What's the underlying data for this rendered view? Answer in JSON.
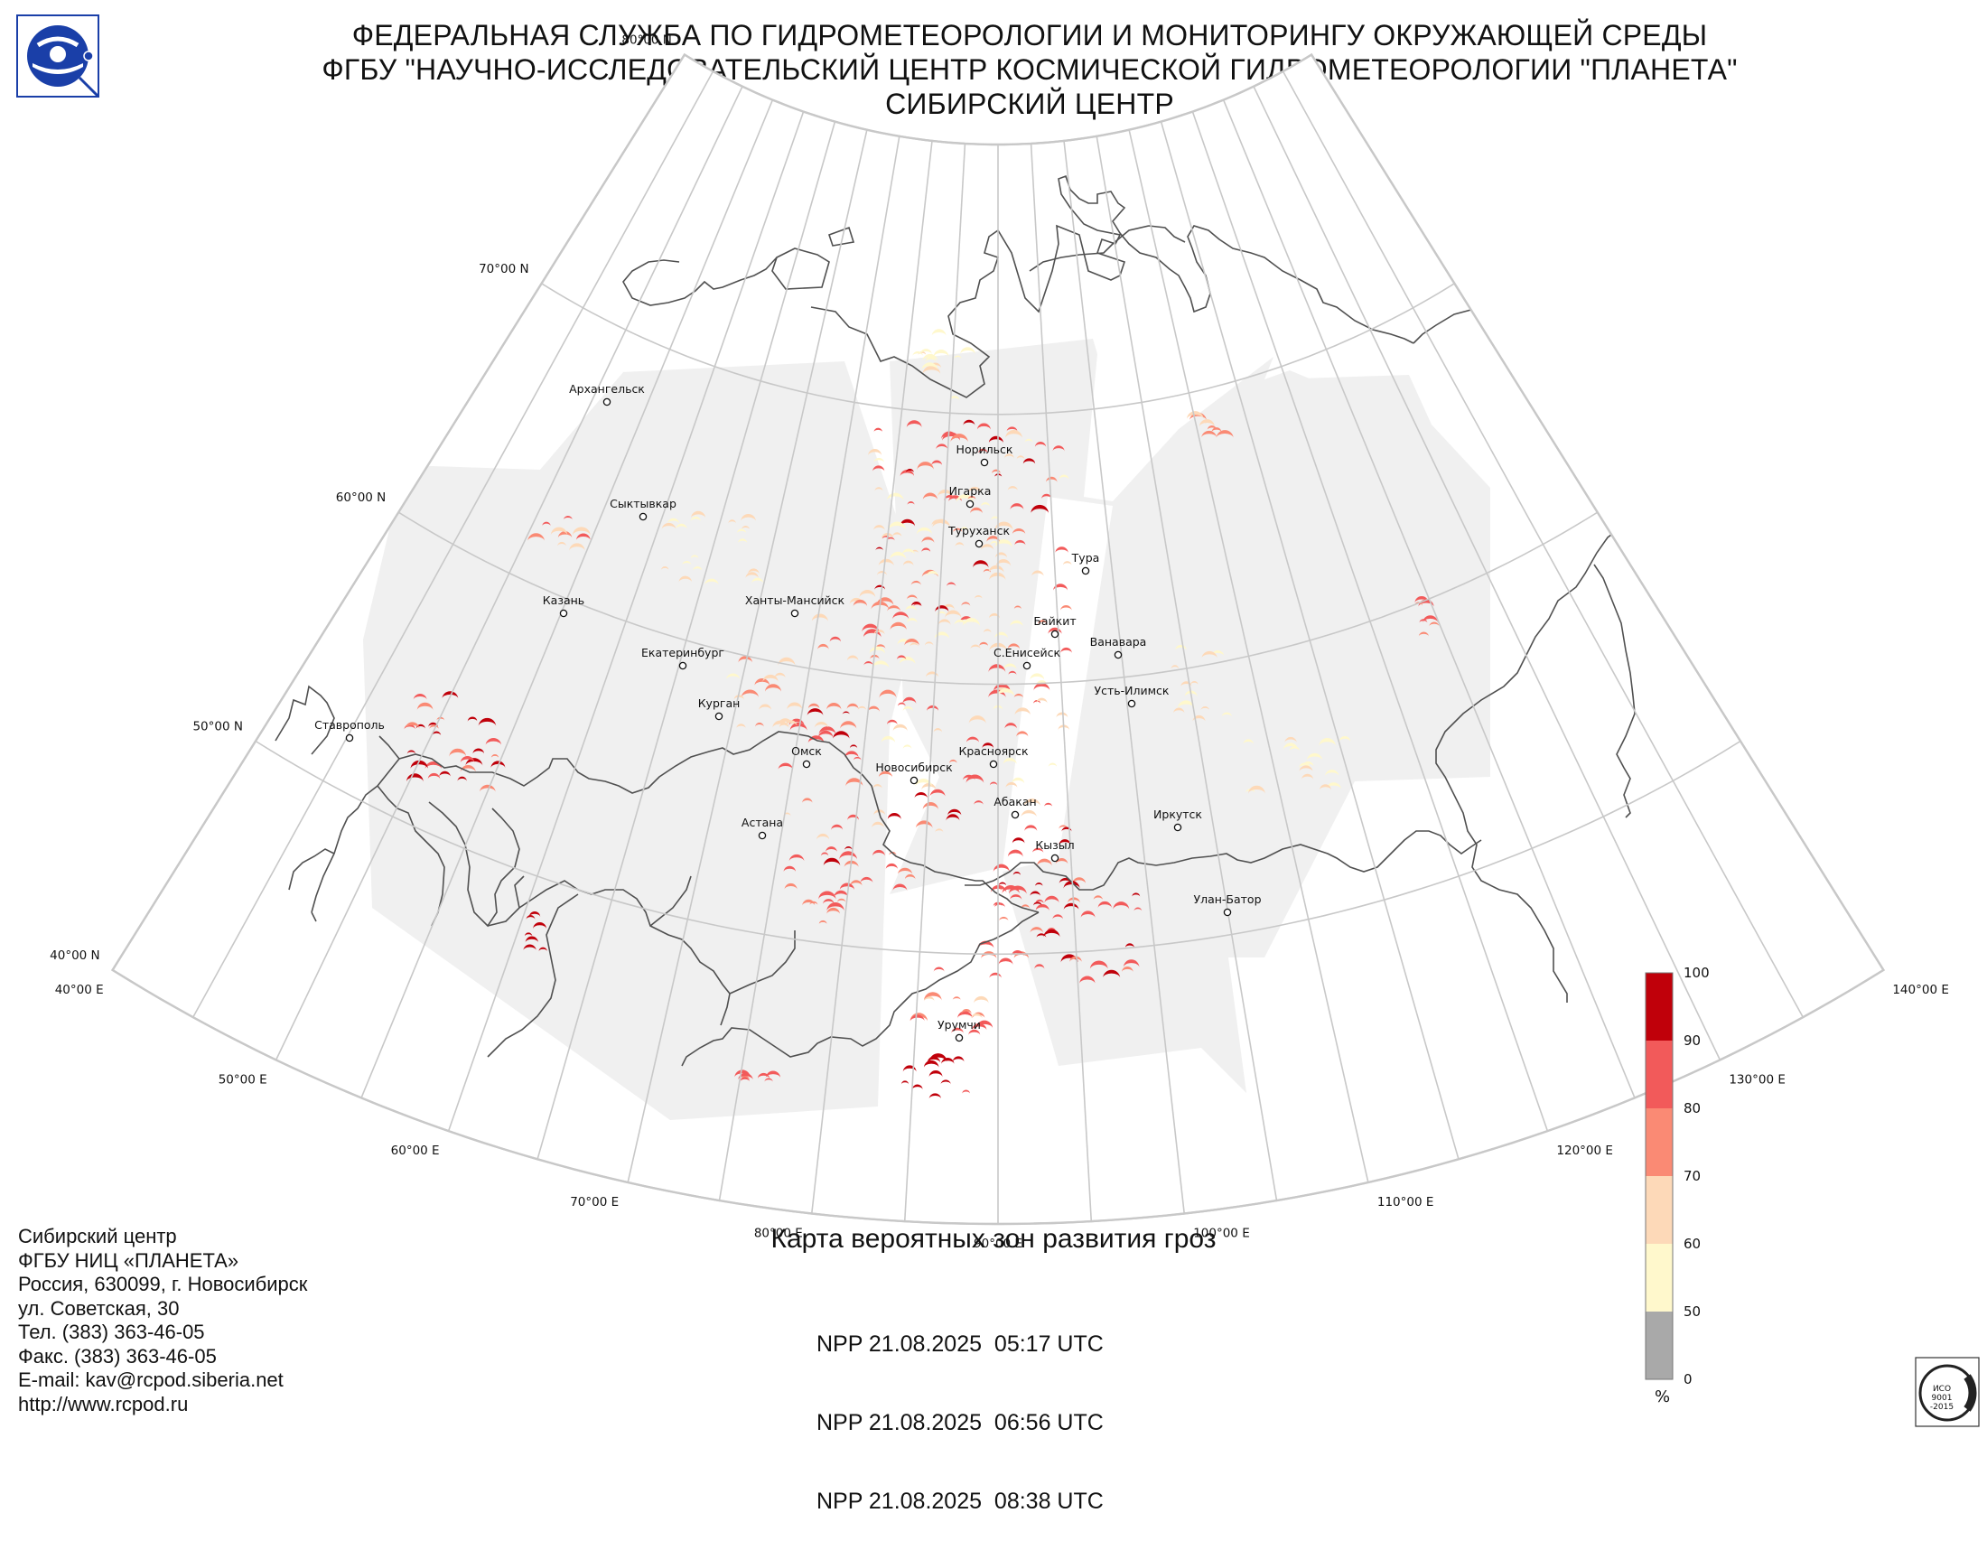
{
  "header": {
    "lines": [
      "ФЕДЕРАЛЬНАЯ СЛУЖБА ПО ГИДРОМЕТЕОРОЛОГИИ И МОНИТОРИНГУ ОКРУЖАЮЩЕЙ СРЕДЫ",
      "ФГБУ \"НАУЧНО-ИССЛЕДОВАТЕЛЬСКИЙ ЦЕНТР КОСМИЧЕСКОЙ ГИДРОМЕТЕОРОЛОГИИ \"ПЛАНЕТА\"",
      "СИБИРСКИЙ ЦЕНТР"
    ]
  },
  "logo": {
    "icon": "roshydromet-logo-icon",
    "color": "#1a3fa8"
  },
  "map": {
    "latitude_labels": [
      "80°00 N",
      "70°00 N",
      "60°00 N",
      "50°00 N",
      "40°00 N"
    ],
    "longitude_labels": [
      "40°00 E",
      "50°00 E",
      "60°00 E",
      "70°00 E",
      "80°00 E",
      "90°00 E",
      "100°00 E",
      "110°00 E",
      "120°00 E",
      "130°00 E",
      "140°00 E"
    ],
    "cities": [
      "Архангельск",
      "Норильск",
      "Игарка",
      "Сыктывкар",
      "Туруханск",
      "Тура",
      "Казань",
      "Ханты-Мансийск",
      "Байкит",
      "Ванавара",
      "Екатеринбург",
      "С.Енисейск",
      "Усть-Илимск",
      "Курган",
      "Ставрополь",
      "Омск",
      "Красноярск",
      "Новосибирск",
      "Абакан",
      "Иркутск",
      "Астана",
      "Кызыл",
      "Улан-Батор",
      "Урумчи"
    ],
    "colors": {
      "graticule": "#c8c8c8",
      "coverage": "#f0f0f0",
      "border": "#505050"
    }
  },
  "legend": {
    "ticks": [
      "100",
      "90",
      "80",
      "70",
      "60",
      "50",
      "0"
    ],
    "unit": "%",
    "colors": [
      "#c0000a",
      "#f25a5a",
      "#fa8a74",
      "#fdd9b8",
      "#fff8cc",
      "#a9a9a9"
    ]
  },
  "contacts": {
    "lines": [
      "Сибирский центр",
      "ФГБУ НИЦ «ПЛАНЕТА»",
      "Россия, 630099, г. Новосибирск",
      "ул. Советская, 30",
      "Тел. (383) 363-46-05",
      "Факс. (383) 363-46-05",
      "E-mail: kav@rcpod.siberia.net",
      "http://www.rcpod.ru"
    ]
  },
  "map_title": "Карта вероятных зон развития гроз",
  "passes": [
    "NPP 21.08.2025  05:17 UTC",
    "NPP 21.08.2025  06:56 UTC",
    "NPP 21.08.2025  08:38 UTC"
  ],
  "certificate": {
    "icon": "iso-certificate-icon",
    "lines": [
      "ИСО",
      "9001",
      "-2015"
    ]
  }
}
